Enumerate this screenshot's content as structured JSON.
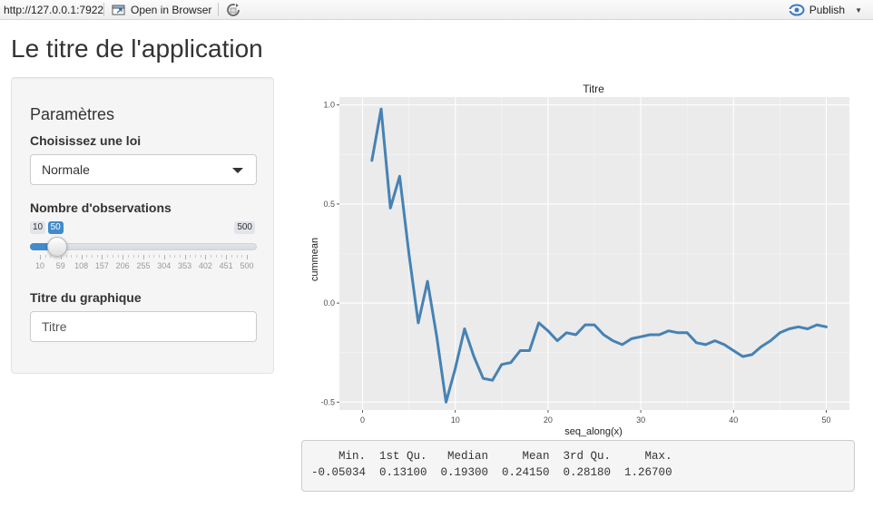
{
  "toolbar": {
    "url": "http://127.0.0.1:7922",
    "open_in_browser": "Open in Browser",
    "publish": "Publish"
  },
  "app": {
    "title": "Le titre de l'application"
  },
  "sidebar": {
    "heading": "Paramètres",
    "law_label": "Choisissez une loi",
    "law_selected": "Normale",
    "obs_label": "Nombre d'observations",
    "slider": {
      "min": 10,
      "max": 500,
      "value": 50,
      "min_label": "10",
      "max_label": "500",
      "value_label": "50",
      "grid": [
        "10",
        "59",
        "108",
        "157",
        "206",
        "255",
        "304",
        "353",
        "402",
        "451",
        "500"
      ]
    },
    "title_label": "Titre du graphique",
    "title_value": "Titre"
  },
  "chart_data": {
    "type": "line",
    "title": "Titre",
    "xlabel": "seq_along(x)",
    "ylabel": "cummean",
    "xlim": [
      -2.5,
      52.5
    ],
    "ylim": [
      -0.54,
      1.04
    ],
    "x_ticks": [
      0,
      10,
      20,
      30,
      40,
      50
    ],
    "y_ticks": [
      -0.5,
      0.0,
      0.5,
      1.0
    ],
    "y_tick_labels": [
      "-0.5",
      "0.0",
      "0.5",
      "1.0"
    ],
    "grid": true,
    "background": "#ebebeb",
    "line_color": "#4682b4",
    "x": [
      1,
      2,
      3,
      4,
      5,
      6,
      7,
      8,
      9,
      10,
      11,
      12,
      13,
      14,
      15,
      16,
      17,
      18,
      19,
      20,
      21,
      22,
      23,
      24,
      25,
      26,
      27,
      28,
      29,
      30,
      31,
      32,
      33,
      34,
      35,
      36,
      37,
      38,
      39,
      40,
      41,
      42,
      43,
      44,
      45,
      46,
      47,
      48,
      49,
      50
    ],
    "y": [
      0.72,
      0.98,
      0.48,
      0.64,
      0.25,
      -0.1,
      0.11,
      -0.17,
      -0.5,
      -0.33,
      -0.13,
      -0.27,
      -0.38,
      -0.39,
      -0.31,
      -0.3,
      -0.24,
      -0.24,
      -0.1,
      -0.14,
      -0.19,
      -0.15,
      -0.16,
      -0.11,
      -0.11,
      -0.16,
      -0.19,
      -0.21,
      -0.18,
      -0.17,
      -0.16,
      -0.16,
      -0.14,
      -0.15,
      -0.15,
      -0.2,
      -0.21,
      -0.19,
      -0.21,
      -0.24,
      -0.27,
      -0.26,
      -0.22,
      -0.19,
      -0.15,
      -0.13,
      -0.12,
      -0.13,
      -0.11,
      -0.12
    ]
  },
  "summary": {
    "header": "    Min.  1st Qu.   Median     Mean  3rd Qu.     Max. ",
    "values": "-0.05034  0.13100  0.19300  0.24150  0.28180  1.26700 "
  }
}
